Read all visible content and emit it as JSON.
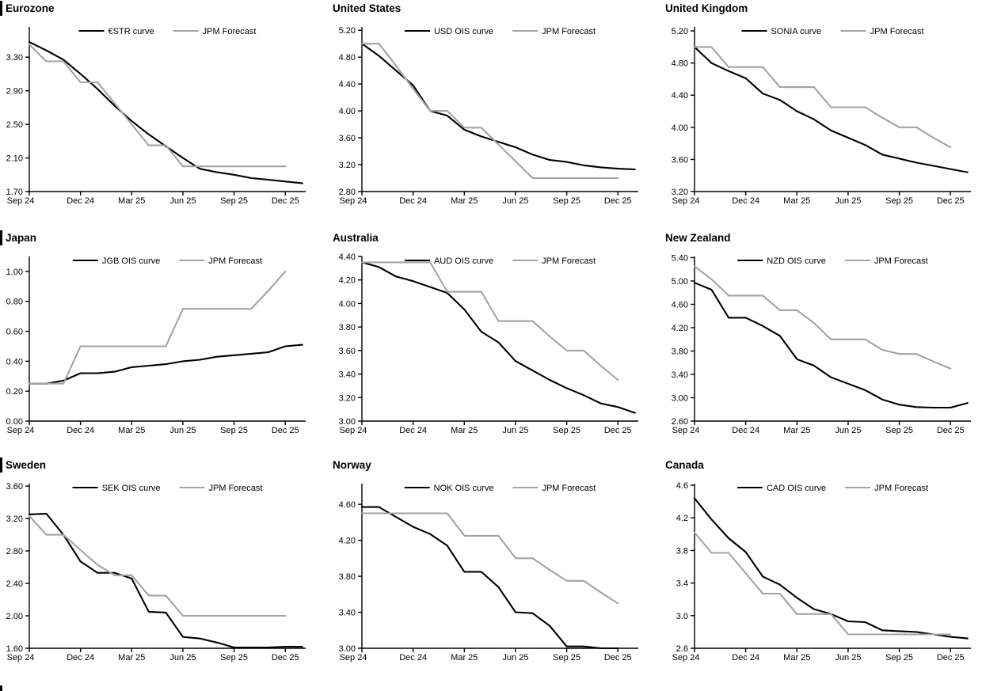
{
  "palette": {
    "series_black": "#000000",
    "series_gray": "#a3a3a3",
    "axis": "#000000"
  },
  "x_months": [
    "Sep 24",
    "Oct 24",
    "Nov 24",
    "Dec 24",
    "Jan 25",
    "Feb 25",
    "Mar 25",
    "Apr 25",
    "May 25",
    "Jun 25",
    "Jul 25",
    "Aug 25",
    "Sep 25",
    "Oct 25",
    "Nov 25",
    "Dec 25",
    "Jan 26"
  ],
  "chart_data": [
    {
      "type": "line",
      "title": "Eurozone",
      "title_bar": true,
      "grid": false,
      "legend_position": "top-center",
      "y_axis": {
        "min": 1.7,
        "max": 3.66,
        "tick_labels": [
          "1.70",
          "2.10",
          "2.50",
          "2.90",
          "3.30"
        ],
        "tick_values": [
          1.7,
          2.1,
          2.5,
          2.9,
          3.3
        ]
      },
      "x_axis": {
        "tick_labels": [
          "Sep 24",
          "Dec 24",
          "Mar 25",
          "Jun 25",
          "Sep 25",
          "Dec 25"
        ],
        "tick_months": [
          0,
          3,
          6,
          9,
          12,
          15
        ]
      },
      "series": [
        {
          "name": "€STR curve",
          "color": "#000000",
          "values": [
            3.48,
            3.38,
            3.27,
            3.1,
            2.92,
            2.72,
            2.54,
            2.38,
            2.24,
            2.1,
            1.97,
            1.93,
            1.9,
            1.86,
            1.84,
            1.82,
            1.8
          ]
        },
        {
          "name": "JPM Forecast",
          "color": "#a3a3a3",
          "values": [
            3.45,
            3.25,
            3.25,
            3.0,
            3.0,
            2.75,
            2.5,
            2.25,
            2.25,
            2.0,
            2.0,
            2.0,
            2.0,
            2.0,
            2.0,
            2.0
          ]
        }
      ]
    },
    {
      "type": "line",
      "title": "United States",
      "title_bar": false,
      "grid": false,
      "legend_position": "top-center",
      "y_axis": {
        "min": 2.8,
        "max": 5.25,
        "tick_labels": [
          "2.80",
          "3.20",
          "3.60",
          "4.00",
          "4.40",
          "4.80",
          "5.20"
        ],
        "tick_values": [
          2.8,
          3.2,
          3.6,
          4.0,
          4.4,
          4.8,
          5.2
        ]
      },
      "x_axis": {
        "tick_labels": [
          "Sep 24",
          "Dec 24",
          "Mar 25",
          "Jun 25",
          "Sep 25",
          "Dec 25"
        ],
        "tick_months": [
          0,
          3,
          6,
          9,
          12,
          15
        ]
      },
      "series": [
        {
          "name": "USD OIS curve",
          "color": "#000000",
          "values": [
            5.0,
            4.82,
            4.6,
            4.38,
            4.0,
            3.93,
            3.72,
            3.62,
            3.54,
            3.46,
            3.35,
            3.27,
            3.24,
            3.19,
            3.16,
            3.14,
            3.13
          ]
        },
        {
          "name": "JPM Forecast",
          "color": "#a3a3a3",
          "values": [
            5.0,
            5.0,
            4.67,
            4.33,
            4.0,
            4.0,
            3.75,
            3.75,
            3.5,
            3.25,
            3.0,
            3.0,
            3.0,
            3.0,
            3.0,
            3.0
          ]
        }
      ]
    },
    {
      "type": "line",
      "title": "United Kingdom",
      "title_bar": false,
      "grid": false,
      "legend_position": "top-center",
      "y_axis": {
        "min": 3.2,
        "max": 5.25,
        "tick_labels": [
          "3.20",
          "3.60",
          "4.00",
          "4.40",
          "4.80",
          "5.20"
        ],
        "tick_values": [
          3.2,
          3.6,
          4.0,
          4.4,
          4.8,
          5.2
        ]
      },
      "x_axis": {
        "tick_labels": [
          "Sep 24",
          "Dec 24",
          "Mar 25",
          "Jun 25",
          "Sep 25",
          "Dec 25"
        ],
        "tick_months": [
          0,
          3,
          6,
          9,
          12,
          15
        ]
      },
      "series": [
        {
          "name": "SONIA curve",
          "color": "#000000",
          "values": [
            5.0,
            4.8,
            4.7,
            4.61,
            4.42,
            4.34,
            4.2,
            4.1,
            3.96,
            3.87,
            3.78,
            3.66,
            3.61,
            3.56,
            3.52,
            3.48,
            3.44
          ]
        },
        {
          "name": "JPM Forecast",
          "color": "#a3a3a3",
          "values": [
            5.0,
            5.0,
            4.75,
            4.75,
            4.75,
            4.5,
            4.5,
            4.5,
            4.25,
            4.25,
            4.25,
            4.12,
            4.0,
            4.0,
            3.87,
            3.75
          ]
        }
      ]
    },
    {
      "type": "line",
      "title": "Japan",
      "title_bar": true,
      "grid": false,
      "legend_position": "top-center",
      "y_axis": {
        "min": 0.0,
        "max": 1.1,
        "tick_labels": [
          "0.00",
          "0.20",
          "0.40",
          "0.60",
          "0.80",
          "1.00"
        ],
        "tick_values": [
          0.0,
          0.2,
          0.4,
          0.6,
          0.8,
          1.0
        ]
      },
      "x_axis": {
        "tick_labels": [
          "Sep 24",
          "Dec 24",
          "Mar 25",
          "Jun 25",
          "Sep 25",
          "Dec 25"
        ],
        "tick_months": [
          0,
          3,
          6,
          9,
          12,
          15
        ]
      },
      "series": [
        {
          "name": "JGB OIS curve",
          "color": "#000000",
          "values": [
            0.25,
            0.25,
            0.27,
            0.32,
            0.32,
            0.33,
            0.36,
            0.37,
            0.38,
            0.4,
            0.41,
            0.43,
            0.44,
            0.45,
            0.46,
            0.5,
            0.51
          ]
        },
        {
          "name": "JPM Forecast",
          "color": "#a3a3a3",
          "values": [
            0.25,
            0.25,
            0.25,
            0.5,
            0.5,
            0.5,
            0.5,
            0.5,
            0.5,
            0.75,
            0.75,
            0.75,
            0.75,
            0.75,
            0.87,
            1.0
          ]
        }
      ]
    },
    {
      "type": "line",
      "title": "Australia",
      "title_bar": false,
      "grid": false,
      "legend_position": "top-center",
      "y_axis": {
        "min": 3.0,
        "max": 4.4,
        "tick_labels": [
          "3.00",
          "3.20",
          "3.40",
          "3.60",
          "3.80",
          "4.00",
          "4.20",
          "4.40"
        ],
        "tick_values": [
          3.0,
          3.2,
          3.4,
          3.6,
          3.8,
          4.0,
          4.2,
          4.4
        ]
      },
      "x_axis": {
        "tick_labels": [
          "Sep 24",
          "Dec 24",
          "Mar 25",
          "Jun 25",
          "Sep 25",
          "Dec 25"
        ],
        "tick_months": [
          0,
          3,
          6,
          9,
          12,
          15
        ]
      },
      "series": [
        {
          "name": "AUD OIS curve",
          "color": "#000000",
          "values": [
            4.35,
            4.31,
            4.23,
            4.19,
            4.14,
            4.09,
            3.95,
            3.76,
            3.67,
            3.51,
            3.43,
            3.35,
            3.28,
            3.22,
            3.15,
            3.12,
            3.07
          ]
        },
        {
          "name": "JPM Forecast",
          "color": "#a3a3a3",
          "values": [
            4.35,
            4.35,
            4.35,
            4.35,
            4.35,
            4.1,
            4.1,
            4.1,
            3.85,
            3.85,
            3.85,
            3.72,
            3.6,
            3.6,
            3.47,
            3.35
          ]
        }
      ]
    },
    {
      "type": "line",
      "title": "New Zealand",
      "title_bar": false,
      "grid": false,
      "legend_position": "top-center",
      "y_axis": {
        "min": 2.6,
        "max": 5.42,
        "tick_labels": [
          "2.60",
          "3.00",
          "3.40",
          "3.80",
          "4.20",
          "4.60",
          "5.00",
          "5.40"
        ],
        "tick_values": [
          2.6,
          3.0,
          3.4,
          3.8,
          4.2,
          4.6,
          5.0,
          5.4
        ]
      },
      "x_axis": {
        "tick_labels": [
          "Sep 24",
          "Dec 24",
          "Mar 25",
          "Jun 25",
          "Sep 25",
          "Dec 25"
        ],
        "tick_months": [
          0,
          3,
          6,
          9,
          12,
          15
        ]
      },
      "series": [
        {
          "name": "NZD OIS curve",
          "color": "#000000",
          "values": [
            4.97,
            4.85,
            4.37,
            4.37,
            4.23,
            4.06,
            3.66,
            3.55,
            3.35,
            3.24,
            3.13,
            2.97,
            2.88,
            2.84,
            2.83,
            2.83,
            2.91
          ]
        },
        {
          "name": "JPM Forecast",
          "color": "#a3a3a3",
          "values": [
            5.25,
            5.03,
            4.75,
            4.75,
            4.75,
            4.5,
            4.5,
            4.28,
            4.0,
            4.0,
            4.0,
            3.82,
            3.75,
            3.75,
            3.62,
            3.5
          ]
        }
      ]
    },
    {
      "type": "line",
      "title": "Sweden",
      "title_bar": true,
      "grid": false,
      "legend_position": "top-center",
      "y_axis": {
        "min": 1.6,
        "max": 3.63,
        "tick_labels": [
          "1.60",
          "2.00",
          "2.40",
          "2.80",
          "3.20",
          "3.60"
        ],
        "tick_values": [
          1.6,
          2.0,
          2.4,
          2.8,
          3.2,
          3.6
        ]
      },
      "x_axis": {
        "tick_labels": [
          "Sep 24",
          "Dec 24",
          "Mar 25",
          "Jun 25",
          "Sep 25",
          "Dec 25"
        ],
        "tick_months": [
          0,
          3,
          6,
          9,
          12,
          15
        ]
      },
      "series": [
        {
          "name": "SEK OIS curve",
          "color": "#000000",
          "values": [
            3.25,
            3.26,
            3.0,
            2.67,
            2.53,
            2.53,
            2.46,
            2.05,
            2.04,
            1.74,
            1.72,
            1.67,
            1.61,
            1.61,
            1.61,
            1.62,
            1.62
          ]
        },
        {
          "name": "JPM Forecast",
          "color": "#a3a3a3",
          "values": [
            3.23,
            3.0,
            3.0,
            2.81,
            2.63,
            2.5,
            2.5,
            2.25,
            2.25,
            2.0,
            2.0,
            2.0,
            2.0,
            2.0,
            2.0,
            2.0
          ]
        }
      ]
    },
    {
      "type": "line",
      "title": "Norway",
      "title_bar": false,
      "grid": false,
      "legend_position": "top-center",
      "y_axis": {
        "min": 3.0,
        "max": 4.83,
        "tick_labels": [
          "3.00",
          "3.40",
          "3.80",
          "4.20",
          "4.60"
        ],
        "tick_values": [
          3.0,
          3.4,
          3.8,
          4.2,
          4.6
        ]
      },
      "x_axis": {
        "tick_labels": [
          "Sep 24",
          "Dec 24",
          "Mar 25",
          "Jun 25",
          "Sep 25",
          "Dec 25"
        ],
        "tick_months": [
          0,
          3,
          6,
          9,
          12,
          15
        ]
      },
      "series": [
        {
          "name": "NOK OIS curve",
          "color": "#000000",
          "values": [
            4.57,
            4.57,
            4.46,
            4.35,
            4.27,
            4.14,
            3.85,
            3.85,
            3.68,
            3.4,
            3.39,
            3.25,
            3.02,
            3.02,
            3.0,
            3.0
          ]
        },
        {
          "name": "JPM Forecast",
          "color": "#a3a3a3",
          "values": [
            4.5,
            4.5,
            4.5,
            4.5,
            4.5,
            4.5,
            4.25,
            4.25,
            4.25,
            4.0,
            4.0,
            3.87,
            3.75,
            3.75,
            3.62,
            3.5
          ]
        }
      ]
    },
    {
      "type": "line",
      "title": "Canada",
      "title_bar": false,
      "grid": false,
      "legend_position": "top-center",
      "y_axis": {
        "min": 2.6,
        "max": 4.62,
        "tick_labels": [
          "2.6",
          "3.0",
          "3.4",
          "3.8",
          "4.2",
          "4.6"
        ],
        "tick_values": [
          2.6,
          3.0,
          3.4,
          3.8,
          4.2,
          4.6
        ]
      },
      "x_axis": {
        "tick_labels": [
          "Sep 24",
          "Dec 24",
          "Mar 25",
          "Jun 25",
          "Sep 25",
          "Dec 25"
        ],
        "tick_months": [
          0,
          3,
          6,
          9,
          12,
          15
        ]
      },
      "series": [
        {
          "name": "CAD OIS curve",
          "color": "#000000",
          "values": [
            4.44,
            4.18,
            3.95,
            3.78,
            3.48,
            3.38,
            3.22,
            3.08,
            3.02,
            2.93,
            2.92,
            2.82,
            2.81,
            2.8,
            2.77,
            2.74,
            2.72
          ]
        },
        {
          "name": "JPM Forecast",
          "color": "#a3a3a3",
          "values": [
            4.02,
            3.77,
            3.77,
            3.52,
            3.27,
            3.27,
            3.02,
            3.02,
            3.02,
            2.77,
            2.77,
            2.77,
            2.77,
            2.77,
            2.77,
            2.77
          ]
        }
      ]
    }
  ]
}
